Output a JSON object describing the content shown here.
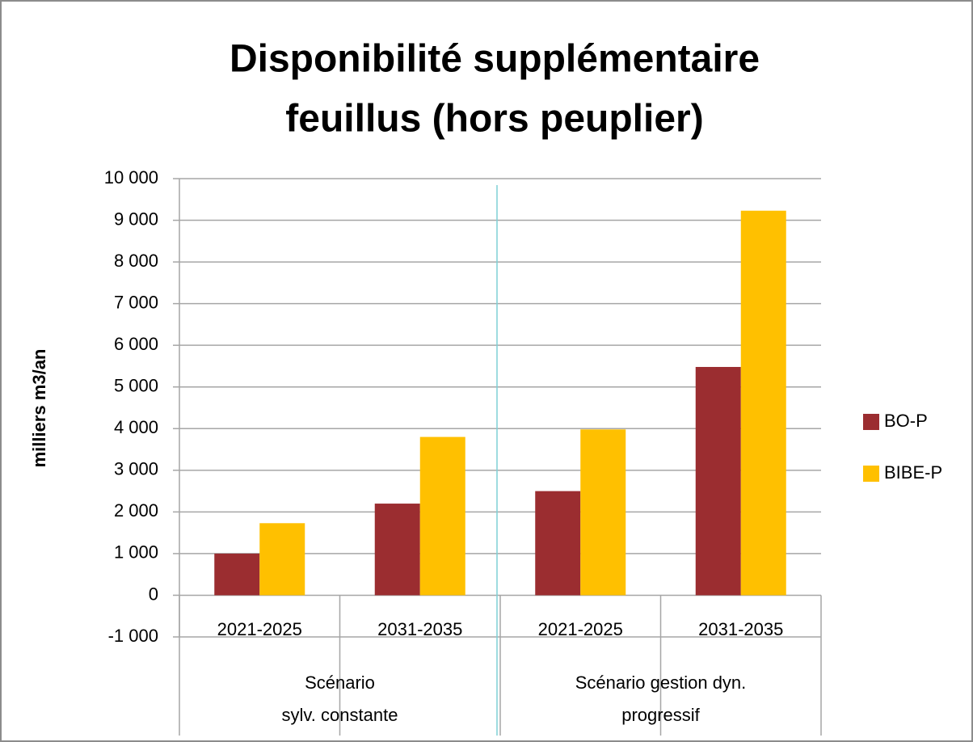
{
  "chart_data": {
    "type": "bar",
    "title": [
      "Disponibilité supplémentaire",
      "feuillus (hors peuplier)"
    ],
    "y_label": "milliers m3/an",
    "categories": [
      "2021-2025",
      "2031-2035",
      "2021-2025",
      "2031-2035"
    ],
    "groups": [
      [
        "Scénario",
        "sylv. constante"
      ],
      [
        "Scénario gestion dyn.",
        "progressif"
      ]
    ],
    "series": [
      {
        "name": "BO-P",
        "color": "#9b2d30",
        "values": [
          1000,
          2200,
          2500,
          5480
        ]
      },
      {
        "name": "BIBE-P",
        "color": "#ffc000",
        "values": [
          1730,
          3800,
          3980,
          9230
        ]
      }
    ],
    "ylim": [
      -1000,
      10000
    ],
    "yticks": [
      {
        "value": -1000,
        "label": "-1 000"
      },
      0,
      {
        "value": 1000,
        "label": "1 000"
      },
      {
        "value": 2000,
        "label": "2 000"
      },
      {
        "value": 3000,
        "label": "3 000"
      },
      {
        "value": 4000,
        "label": "4 000"
      },
      {
        "value": 5000,
        "label": "5 000"
      },
      {
        "value": 6000,
        "label": "6 000"
      },
      {
        "value": 7000,
        "label": "7 000"
      },
      {
        "value": 8000,
        "label": "8 000"
      },
      {
        "value": 9000,
        "label": "9 000"
      },
      {
        "value": 10000,
        "label": "10 000"
      }
    ],
    "grid": true,
    "legend": "right"
  }
}
